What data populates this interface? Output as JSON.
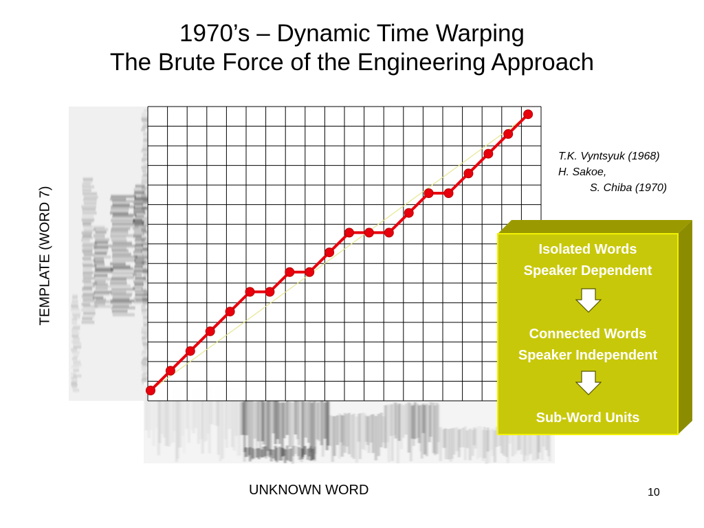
{
  "slide": {
    "title_line1": "1970’s – Dynamic Time Warping",
    "title_line2": "The Brute Force of the Engineering Approach",
    "y_axis_label": "TEMPLATE (WORD 7)",
    "x_axis_label": "UNKNOWN WORD",
    "page_number": "10"
  },
  "references": {
    "line1": "T.K. Vyntsyuk (1968)",
    "line2": "H. Sakoe,",
    "line3": "S. Chiba (1970)"
  },
  "progression_box": {
    "stage1_line1": "Isolated Words",
    "stage1_line2": "Speaker Dependent",
    "stage2_line1": "Connected Words",
    "stage2_line2": "Speaker Independent",
    "stage3_line1": "Sub-Word Units",
    "arrow_icon": "down-arrow-icon"
  },
  "grid": {
    "columns": 20,
    "rows": 15
  },
  "warping_path": [
    [
      0,
      0
    ],
    [
      1,
      1
    ],
    [
      2,
      2
    ],
    [
      3,
      3
    ],
    [
      4,
      4
    ],
    [
      5,
      5
    ],
    [
      6,
      5
    ],
    [
      7,
      6
    ],
    [
      8,
      6
    ],
    [
      9,
      7
    ],
    [
      10,
      8
    ],
    [
      11,
      8
    ],
    [
      12,
      8
    ],
    [
      13,
      9
    ],
    [
      14,
      10
    ],
    [
      15,
      10
    ],
    [
      16,
      11
    ],
    [
      17,
      12
    ],
    [
      18,
      13
    ],
    [
      19,
      14
    ]
  ],
  "colors": {
    "path": "#e8000d",
    "box_face": "#c8c80a",
    "box_top": "#9a9a00",
    "box_side": "#8c8c00",
    "box_border": "#f2f200",
    "grid_line": "#000000",
    "diagonal": "#e6e690"
  }
}
